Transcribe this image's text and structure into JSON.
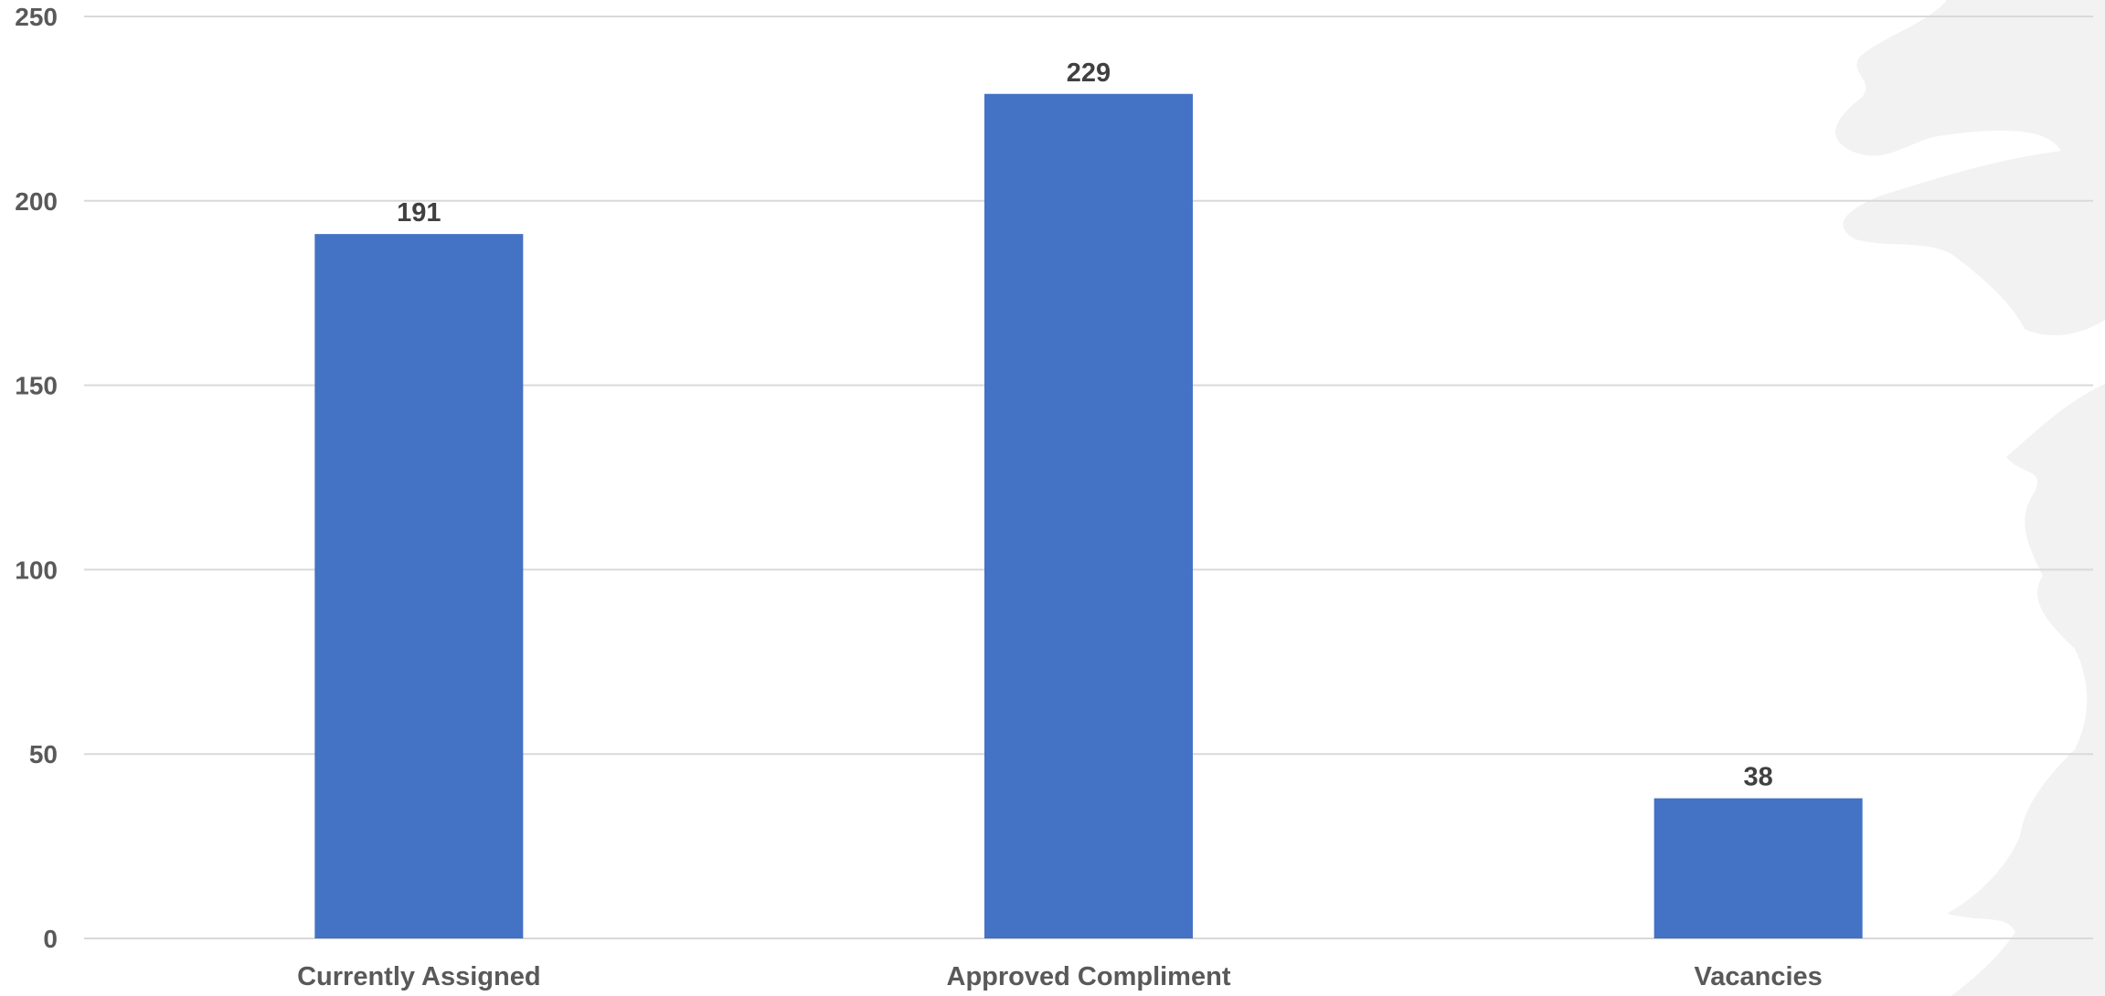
{
  "chart_data": {
    "type": "bar",
    "categories": [
      "Currently Assigned",
      "Approved Compliment",
      "Vacancies"
    ],
    "values": [
      191,
      229,
      38
    ],
    "data_labels": [
      "191",
      "229",
      "38"
    ],
    "yticks": [
      0,
      50,
      100,
      150,
      200,
      250
    ],
    "ylim": [
      0,
      250
    ],
    "grid": true,
    "legend": "none",
    "colors": {
      "bar": "#4472C4",
      "grid": "#D9D9D9",
      "background_watermark": "#F2F2F2"
    }
  }
}
